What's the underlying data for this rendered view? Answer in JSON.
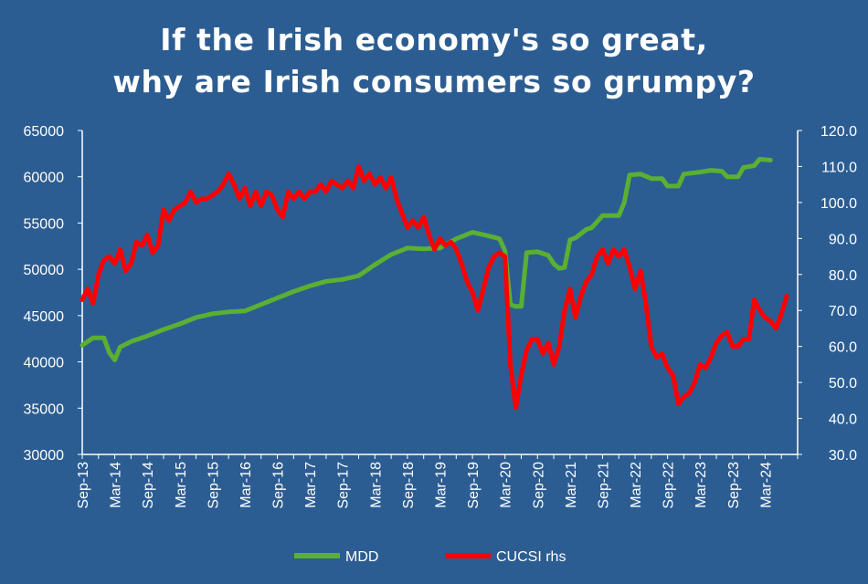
{
  "chart_data": {
    "type": "line",
    "title_lines": [
      "If the Irish economy's so great,",
      "why are Irish consumers so grumpy?"
    ],
    "y_left": {
      "min": 30000,
      "max": 65000,
      "step": 5000,
      "ticks": [
        "30000",
        "35000",
        "40000",
        "45000",
        "50000",
        "55000",
        "60000",
        "65000"
      ]
    },
    "y_right": {
      "min": 30.0,
      "max": 120.0,
      "step": 10,
      "ticks": [
        "30.0",
        "40.0",
        "50.0",
        "60.0",
        "70.0",
        "80.0",
        "90.0",
        "100.0",
        "110.0",
        "120.0"
      ]
    },
    "x_tick_labels": [
      "Sep-13",
      "Mar-14",
      "Sep-14",
      "Mar-15",
      "Sep-15",
      "Mar-16",
      "Sep-16",
      "Mar-17",
      "Sep-17",
      "Mar-18",
      "Sep-18",
      "Mar-19",
      "Sep-19",
      "Mar-20",
      "Sep-20",
      "Mar-21",
      "Sep-21",
      "Mar-22",
      "Sep-22",
      "Mar-23",
      "Sep-23",
      "Mar-24"
    ],
    "x_start": "2013-09",
    "x_end": "2024-09",
    "grid": false,
    "legend_position": "bottom",
    "series": [
      {
        "name": "MDD",
        "axis": "left",
        "color": "#5ab032",
        "points": [
          [
            "2013-09",
            41800
          ],
          [
            "2013-11",
            42600
          ],
          [
            "2014-01",
            42600
          ],
          [
            "2014-02",
            41000
          ],
          [
            "2014-03",
            40200
          ],
          [
            "2014-04",
            41600
          ],
          [
            "2014-06",
            42200
          ],
          [
            "2014-09",
            42800
          ],
          [
            "2014-12",
            43500
          ],
          [
            "2015-03",
            44100
          ],
          [
            "2015-06",
            44800
          ],
          [
            "2015-09",
            45200
          ],
          [
            "2015-12",
            45400
          ],
          [
            "2016-03",
            45500
          ],
          [
            "2016-06",
            46200
          ],
          [
            "2016-09",
            46900
          ],
          [
            "2016-12",
            47600
          ],
          [
            "2017-03",
            48200
          ],
          [
            "2017-06",
            48700
          ],
          [
            "2017-09",
            48900
          ],
          [
            "2017-12",
            49300
          ],
          [
            "2018-03",
            50500
          ],
          [
            "2018-06",
            51600
          ],
          [
            "2018-09",
            52300
          ],
          [
            "2018-12",
            52200
          ],
          [
            "2019-03",
            52300
          ],
          [
            "2019-06",
            53300
          ],
          [
            "2019-09",
            54000
          ],
          [
            "2019-12",
            53600
          ],
          [
            "2020-02",
            53300
          ],
          [
            "2020-03",
            52000
          ],
          [
            "2020-04",
            46200
          ],
          [
            "2020-05",
            46000
          ],
          [
            "2020-06",
            46000
          ],
          [
            "2020-07",
            51800
          ],
          [
            "2020-09",
            51900
          ],
          [
            "2020-11",
            51500
          ],
          [
            "2020-12",
            50600
          ],
          [
            "2021-01",
            50100
          ],
          [
            "2021-02",
            50200
          ],
          [
            "2021-03",
            53200
          ],
          [
            "2021-04",
            53400
          ],
          [
            "2021-06",
            54300
          ],
          [
            "2021-07",
            54500
          ],
          [
            "2021-09",
            55800
          ],
          [
            "2021-12",
            55800
          ],
          [
            "2022-01",
            57200
          ],
          [
            "2022-02",
            60200
          ],
          [
            "2022-04",
            60300
          ],
          [
            "2022-06",
            59800
          ],
          [
            "2022-08",
            59800
          ],
          [
            "2022-09",
            59000
          ],
          [
            "2022-11",
            59000
          ],
          [
            "2022-12",
            60300
          ],
          [
            "2023-03",
            60500
          ],
          [
            "2023-05",
            60700
          ],
          [
            "2023-07",
            60600
          ],
          [
            "2023-08",
            60000
          ],
          [
            "2023-10",
            60000
          ],
          [
            "2023-11",
            61000
          ],
          [
            "2024-01",
            61200
          ],
          [
            "2024-02",
            61900
          ],
          [
            "2024-04",
            61800
          ]
        ]
      },
      {
        "name": "CUCSI rhs",
        "axis": "right",
        "color": "#ff0000",
        "points": [
          [
            "2013-09",
            73
          ],
          [
            "2013-10",
            76
          ],
          [
            "2013-11",
            72
          ],
          [
            "2013-12",
            80
          ],
          [
            "2014-01",
            84
          ],
          [
            "2014-02",
            85
          ],
          [
            "2014-03",
            83
          ],
          [
            "2014-04",
            87
          ],
          [
            "2014-05",
            81
          ],
          [
            "2014-06",
            83
          ],
          [
            "2014-07",
            89
          ],
          [
            "2014-08",
            88
          ],
          [
            "2014-09",
            91
          ],
          [
            "2014-10",
            86
          ],
          [
            "2014-11",
            88
          ],
          [
            "2014-12",
            98
          ],
          [
            "2015-01",
            95
          ],
          [
            "2015-02",
            98
          ],
          [
            "2015-03",
            99
          ],
          [
            "2015-04",
            100
          ],
          [
            "2015-05",
            103
          ],
          [
            "2015-06",
            100
          ],
          [
            "2015-07",
            101
          ],
          [
            "2015-08",
            101
          ],
          [
            "2015-09",
            102
          ],
          [
            "2015-10",
            103
          ],
          [
            "2015-11",
            105
          ],
          [
            "2015-12",
            108
          ],
          [
            "2016-01",
            105
          ],
          [
            "2016-02",
            101
          ],
          [
            "2016-03",
            104
          ],
          [
            "2016-04",
            99
          ],
          [
            "2016-05",
            103
          ],
          [
            "2016-06",
            99
          ],
          [
            "2016-07",
            103
          ],
          [
            "2016-08",
            102
          ],
          [
            "2016-09",
            98
          ],
          [
            "2016-10",
            96
          ],
          [
            "2016-11",
            103
          ],
          [
            "2016-12",
            101
          ],
          [
            "2017-01",
            103
          ],
          [
            "2017-02",
            101
          ],
          [
            "2017-03",
            103
          ],
          [
            "2017-04",
            103
          ],
          [
            "2017-05",
            105
          ],
          [
            "2017-06",
            103
          ],
          [
            "2017-07",
            106
          ],
          [
            "2017-08",
            105
          ],
          [
            "2017-09",
            104
          ],
          [
            "2017-10",
            106
          ],
          [
            "2017-11",
            104
          ],
          [
            "2017-12",
            110
          ],
          [
            "2018-01",
            106
          ],
          [
            "2018-02",
            108
          ],
          [
            "2018-03",
            105
          ],
          [
            "2018-04",
            107
          ],
          [
            "2018-05",
            104
          ],
          [
            "2018-06",
            107
          ],
          [
            "2018-07",
            101
          ],
          [
            "2018-08",
            97
          ],
          [
            "2018-09",
            93
          ],
          [
            "2018-10",
            95
          ],
          [
            "2018-11",
            93
          ],
          [
            "2018-12",
            96
          ],
          [
            "2019-01",
            91
          ],
          [
            "2019-02",
            87
          ],
          [
            "2019-03",
            90
          ],
          [
            "2019-04",
            88
          ],
          [
            "2019-05",
            89
          ],
          [
            "2019-06",
            87
          ],
          [
            "2019-07",
            83
          ],
          [
            "2019-08",
            78
          ],
          [
            "2019-09",
            75
          ],
          [
            "2019-10",
            70
          ],
          [
            "2019-11",
            76
          ],
          [
            "2019-12",
            82
          ],
          [
            "2020-01",
            85
          ],
          [
            "2020-02",
            86
          ],
          [
            "2020-03",
            85
          ],
          [
            "2020-04",
            55
          ],
          [
            "2020-05",
            43
          ],
          [
            "2020-06",
            52
          ],
          [
            "2020-07",
            59
          ],
          [
            "2020-08",
            62
          ],
          [
            "2020-09",
            62
          ],
          [
            "2020-10",
            58
          ],
          [
            "2020-11",
            61
          ],
          [
            "2020-12",
            55
          ],
          [
            "2021-01",
            60
          ],
          [
            "2021-02",
            70
          ],
          [
            "2021-03",
            76
          ],
          [
            "2021-04",
            68
          ],
          [
            "2021-05",
            74
          ],
          [
            "2021-06",
            78
          ],
          [
            "2021-07",
            80
          ],
          [
            "2021-08",
            85
          ],
          [
            "2021-09",
            87
          ],
          [
            "2021-10",
            83
          ],
          [
            "2021-11",
            87
          ],
          [
            "2021-12",
            85
          ],
          [
            "2022-01",
            87
          ],
          [
            "2022-02",
            82
          ],
          [
            "2022-03",
            76
          ],
          [
            "2022-04",
            81
          ],
          [
            "2022-05",
            72
          ],
          [
            "2022-06",
            60
          ],
          [
            "2022-07",
            57
          ],
          [
            "2022-08",
            58
          ],
          [
            "2022-09",
            54
          ],
          [
            "2022-10",
            52
          ],
          [
            "2022-11",
            44
          ],
          [
            "2022-12",
            46
          ],
          [
            "2023-01",
            47
          ],
          [
            "2023-02",
            50
          ],
          [
            "2023-03",
            55
          ],
          [
            "2023-04",
            54
          ],
          [
            "2023-05",
            57
          ],
          [
            "2023-06",
            61
          ],
          [
            "2023-07",
            63
          ],
          [
            "2023-08",
            64
          ],
          [
            "2023-09",
            60
          ],
          [
            "2023-10",
            60
          ],
          [
            "2023-11",
            62
          ],
          [
            "2023-12",
            62
          ],
          [
            "2024-01",
            73
          ],
          [
            "2024-02",
            70
          ],
          [
            "2024-03",
            68
          ],
          [
            "2024-04",
            67
          ],
          [
            "2024-05",
            65
          ],
          [
            "2024-06",
            69
          ],
          [
            "2024-07",
            74
          ]
        ]
      }
    ]
  },
  "colors": {
    "background": "#2c5d92",
    "axis": "#ffffff"
  }
}
